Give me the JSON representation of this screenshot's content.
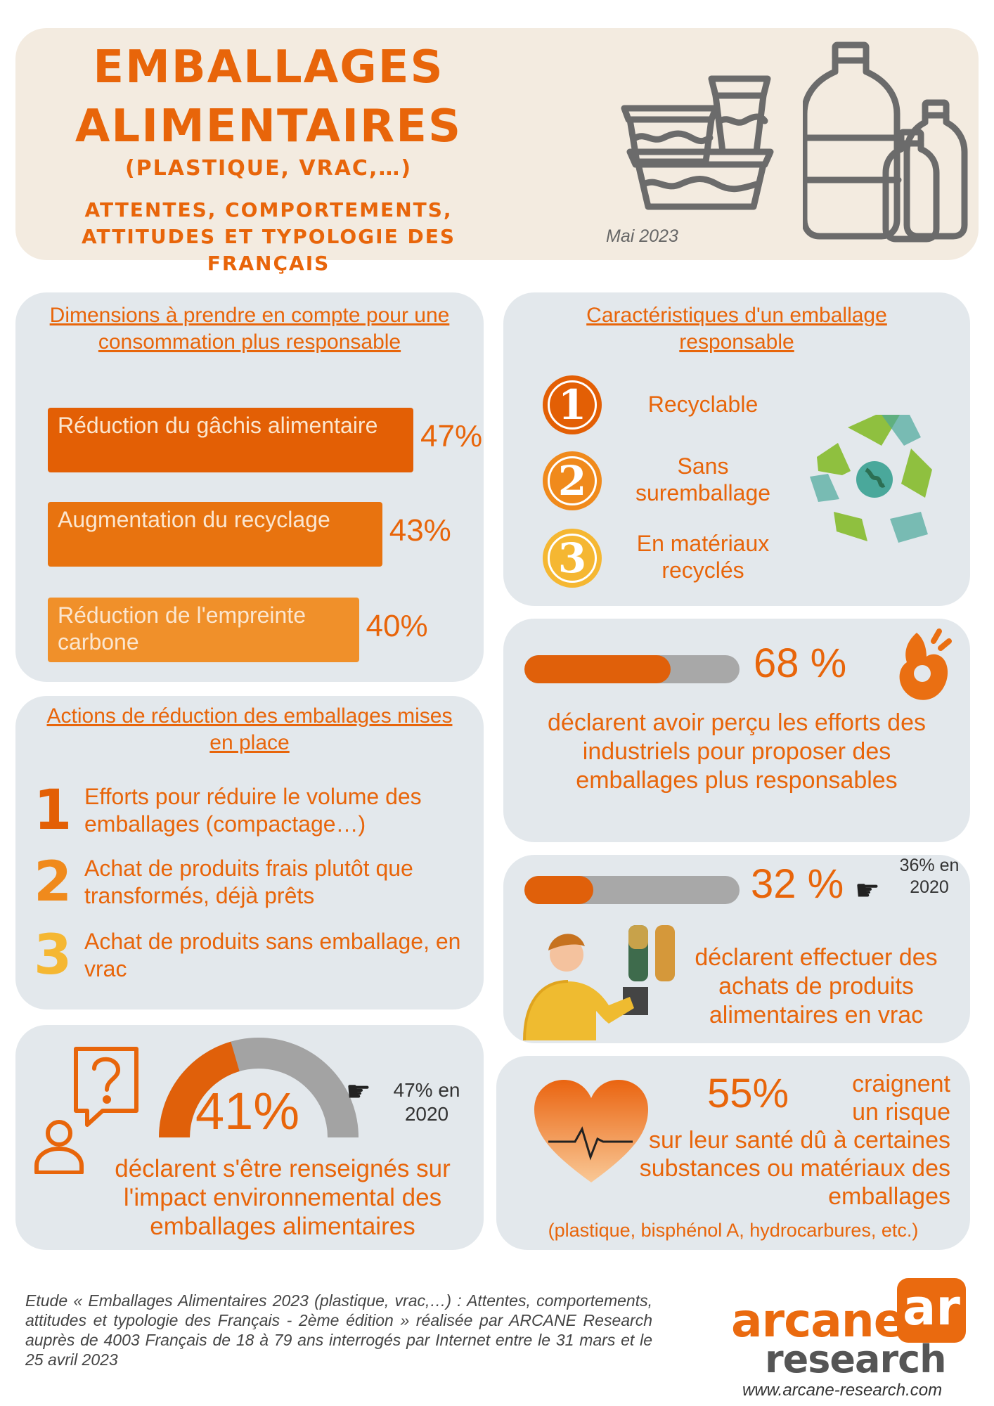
{
  "header": {
    "title_line1": "Emballages",
    "title_line2": "Alimentaires",
    "subtitle": "(plastique, vrac,…)",
    "tagline_line1": "Attentes, comportements,",
    "tagline_line2": "attitudes et typologie des Français",
    "date": "Mai 2023"
  },
  "dimensions": {
    "title": "Dimensions à prendre en compte pour une consommation plus responsable",
    "items": [
      {
        "label": "Réduction du gâchis alimentaire",
        "value": 47,
        "value_label": "47%",
        "color": "#e35f05"
      },
      {
        "label": "Augmentation du recyclage",
        "value": 43,
        "value_label": "43%",
        "color": "#e8730f"
      },
      {
        "label": "Réduction de l'empreinte carbone",
        "value": 40,
        "value_label": "40%",
        "color": "#f0902a"
      }
    ]
  },
  "caracteristiques": {
    "title": "Caractéristiques d'un emballage responsable",
    "items": [
      {
        "num": "1",
        "label": "Recyclable",
        "color": "#e35f05"
      },
      {
        "num": "2",
        "label": "Sans suremballage",
        "color": "#f08a1c"
      },
      {
        "num": "3",
        "label": "En matériaux recyclés",
        "color": "#f5b732"
      }
    ],
    "icon": "recycle-globe-icon"
  },
  "actions": {
    "title": "Actions de réduction des emballages mises en place",
    "items": [
      {
        "num": "1",
        "label": "Efforts pour réduire le volume des emballages (compactage…)",
        "color": "#e35f05"
      },
      {
        "num": "2",
        "label": "Achat de produits frais plutôt que transformés, déjà prêts",
        "color": "#f08a1c"
      },
      {
        "num": "3",
        "label": "Achat de produits sans emballage, en vrac",
        "color": "#f5b732"
      }
    ]
  },
  "efforts": {
    "value": 68,
    "value_label": "68 %",
    "text": "déclarent avoir perçu les efforts des industriels pour proposer des emballages plus responsables",
    "icon": "ok-hand-icon"
  },
  "vrac": {
    "value": 32,
    "value_label": "32 %",
    "compare": "36% en 2020",
    "text": "déclarent effectuer des achats de produits alimentaires en vrac",
    "icon": "bulk-dispenser-person-icon"
  },
  "renseignes": {
    "value": 41,
    "value_label": "41%",
    "compare": "47% en 2020",
    "text": "déclarent s'être renseignés sur l'impact environnemental des emballages alimentaires",
    "icon": "question-person-icon"
  },
  "sante": {
    "value_label": "55%",
    "text_a": "craignent un risque",
    "text_b": "sur leur santé dû à certaines substances ou matériaux des emballages",
    "note": "(plastique, bisphénol A, hydrocarbures, etc.)",
    "icon": "heart-pulse-icon"
  },
  "footer": {
    "study": "Etude « Emballages Alimentaires 2023 (plastique, vrac,…) : Attentes, comportements, attitudes et typologie des Français - 2ème édition » réalisée par ARCANE Research auprès de 4003 Français de 18 à 79 ans interrogés par Internet entre le 31 mars et le 25 avril 2023",
    "logo_line1": "arcane",
    "logo_line2": "research",
    "logo_mark": "ar",
    "url": "www.arcane-research.com"
  }
}
